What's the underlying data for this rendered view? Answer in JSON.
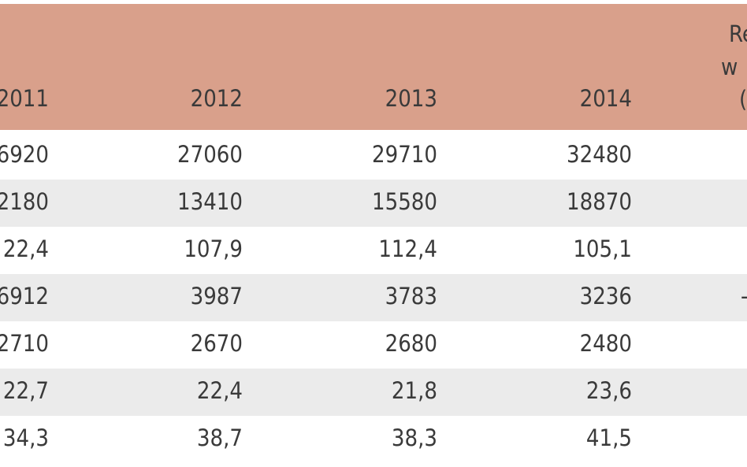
{
  "table": {
    "header": [
      "2011",
      "2012",
      "2013",
      "2014"
    ],
    "rows": [
      [
        "6920",
        "27060",
        "29710",
        "32480"
      ],
      [
        "2180",
        "13410",
        "15580",
        "18870"
      ],
      [
        "22,4",
        "107,9",
        "112,4",
        "105,1"
      ],
      [
        "6912",
        "3987",
        "3783",
        "3236"
      ],
      [
        "2710",
        "2670",
        "2680",
        "2480"
      ],
      [
        "22,7",
        "22,4",
        "21,8",
        "23,6"
      ],
      [
        "34,3",
        "38,7",
        "38,3",
        "41,5"
      ]
    ],
    "cut_column": {
      "header": [
        "Re",
        "w",
        "("
      ],
      "row_3": "-"
    }
  }
}
